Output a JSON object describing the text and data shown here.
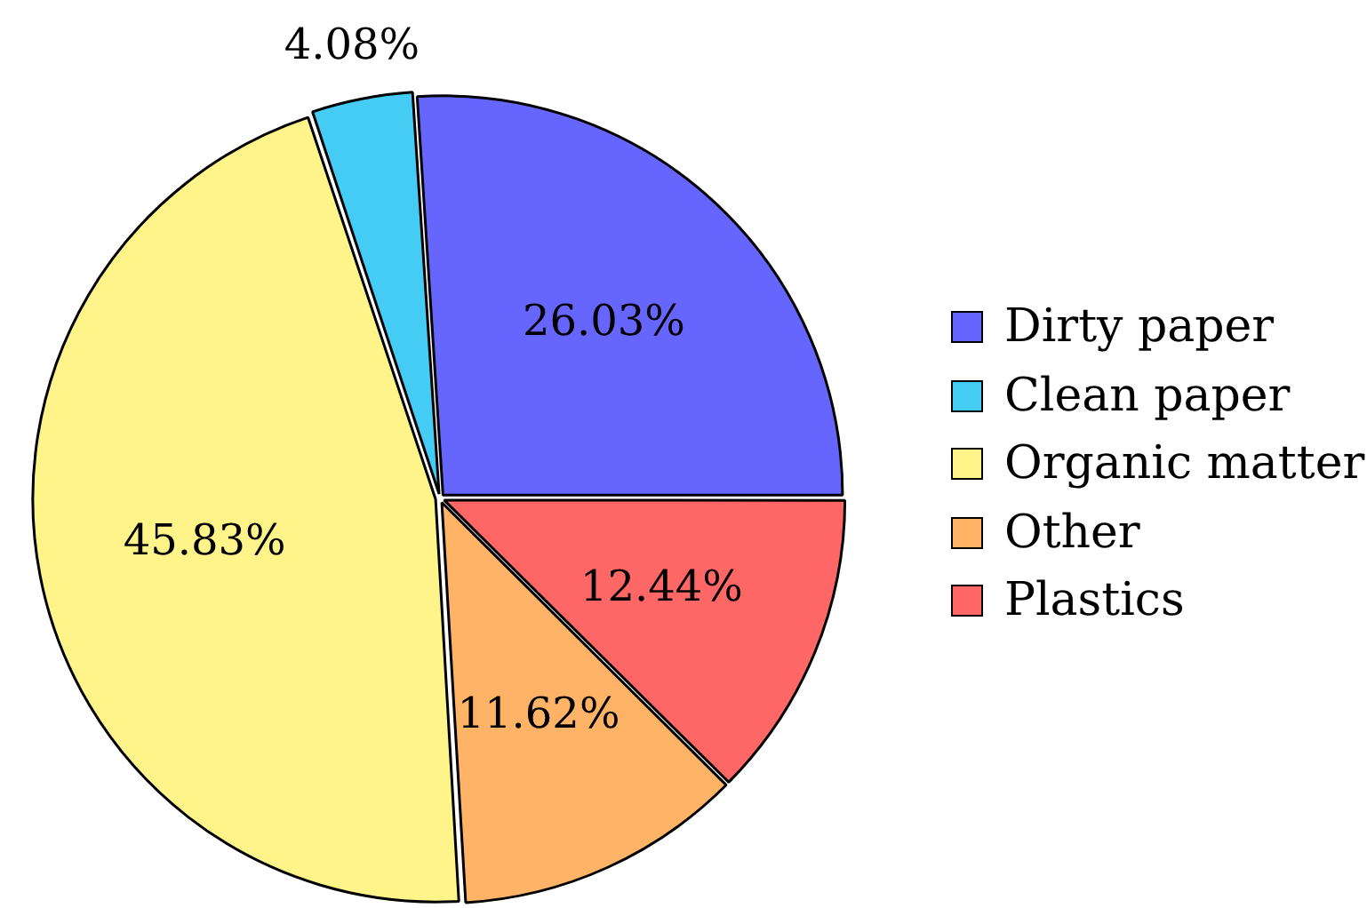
{
  "chart_data": {
    "type": "pie",
    "categories": [
      "Dirty paper",
      "Clean paper",
      "Organic matter",
      "Other",
      "Plastics"
    ],
    "values": [
      26.03,
      4.08,
      45.83,
      11.62,
      12.44
    ],
    "colors": [
      "#6666ff",
      "#44ccf4",
      "#fff48a",
      "#ffb366",
      "#ff6666"
    ],
    "value_labels": [
      "26.03%",
      "4.08%",
      "45.83%",
      "11.62%",
      "12.44%"
    ],
    "legend": "right"
  }
}
